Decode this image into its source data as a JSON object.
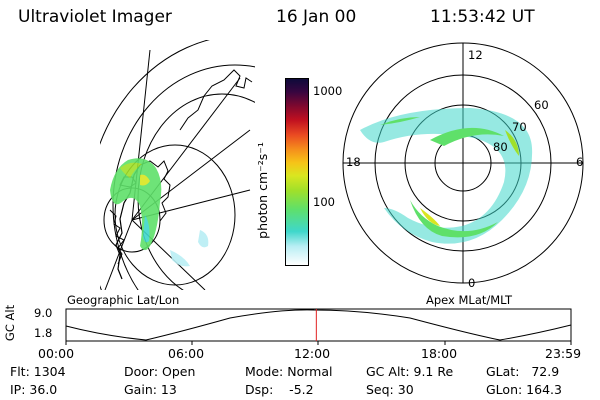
{
  "header": {
    "title": "Ultraviolet Imager",
    "date": "16 Jan 00",
    "time": "11:53:42 UT"
  },
  "colorbar": {
    "unit_label": "photon cm⁻²s⁻¹",
    "tick_1000": "1000",
    "tick_100": "100",
    "colors": [
      "#ffffff",
      "#b9eef4",
      "#3fd7cb",
      "#5fe06a",
      "#a0e02a",
      "#d9e620",
      "#f6c418",
      "#f5901c",
      "#ea4a22",
      "#c01020",
      "#7a0830",
      "#380640",
      "#0e0a3a"
    ]
  },
  "left_map": {
    "label": "Geographic Lat/Lon"
  },
  "polar_plot": {
    "label": "Apex  MLat/MLT",
    "mlt_12": "12",
    "mlt_6": "6",
    "mlt_18": "18",
    "mlt_0": "0",
    "lat_60": "60",
    "lat_70": "70",
    "lat_80": "80"
  },
  "altitude_strip": {
    "y_title": "GC Alt",
    "y_max": "9.0",
    "y_min": "1.8",
    "ticks": [
      "00:00",
      "06:00",
      "12:00",
      "18:00",
      "23:59"
    ],
    "current_time_fraction": 0.4957
  },
  "status": {
    "flt": "Flt: 1304",
    "ip": "IP: 36.0",
    "door": "Door: Open",
    "gain": "Gain: 13",
    "mode": "Mode: Normal",
    "dsp": "Dsp:    -5.2",
    "gc_alt": "GC Alt: 9.1 Re",
    "seq": "Seq: 30",
    "glat": "GLat:   72.9",
    "glon": "GLon: 164.3"
  }
}
